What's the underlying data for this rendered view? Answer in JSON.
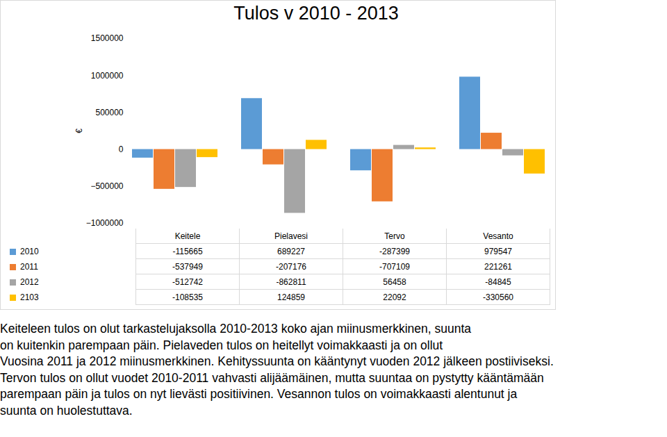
{
  "chart_data": {
    "type": "bar",
    "title": "Tulos v 2010 - 2013",
    "y_label": "€",
    "categories": [
      "Keitele",
      "Pielavesi",
      "Tervo",
      "Vesanto"
    ],
    "series": [
      {
        "name": "2010",
        "color": "#5b9bd5",
        "values": [
          -115665,
          689227,
          -287399,
          979547
        ]
      },
      {
        "name": "2011",
        "color": "#ed7d31",
        "values": [
          -537949,
          -207176,
          -707109,
          221261
        ]
      },
      {
        "name": "2012",
        "color": "#a5a5a5",
        "values": [
          -512742,
          -862811,
          56458,
          -84845
        ]
      },
      {
        "name": "2103",
        "color": "#ffc000",
        "values": [
          -108535,
          124859,
          22092,
          -330560
        ]
      }
    ],
    "ylim": [
      -1000000,
      1500000
    ],
    "yticks": [
      -1000000,
      -500000,
      0,
      500000,
      1000000,
      1500000
    ],
    "grid": false,
    "annotation": [
      "Keiteleen tulos on olut tarkastelujaksolla 2010-2013 koko ajan miinusmerkkinen, suunta",
      "on kuitenkin parempaan päin. Pielaveden tulos on heitellyt voimakkaasti ja on ollut",
      "Vuosina  2011 ja 2012 miinusmerkkinen. Kehityssuunta on kääntynyt vuoden 2012 jälkeen postiiviseksi.",
      "Tervon tulos on ollut vuodet 2010-2011 vahvasti alijäämäinen, mutta suuntaa on pystytty kääntämään",
      "parempaan päin ja tulos on nyt lievästi positiivinen. Vesannon tulos on voimakkaasti alentunut ja",
      "suunta on huolestuttava."
    ]
  }
}
